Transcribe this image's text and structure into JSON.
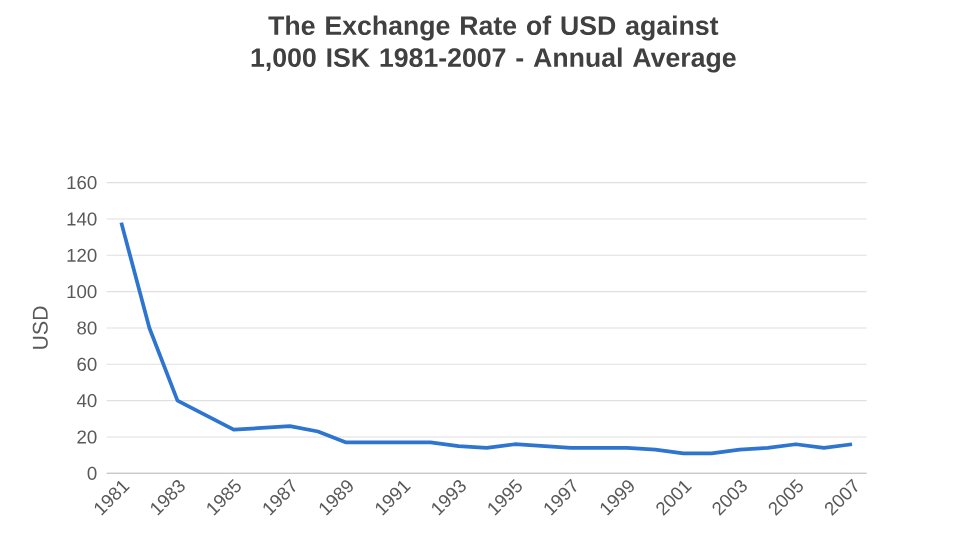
{
  "chart_data": {
    "type": "line",
    "title": "The Exchange Rate of USD against 1,000 ISK 1981-2007 - Annual Average",
    "ylabel": "USD",
    "categories": [
      "1981",
      null,
      "1983",
      null,
      "1985",
      null,
      "1987",
      null,
      "1989",
      null,
      "1991",
      null,
      "1993",
      null,
      "1995",
      null,
      "1997",
      null,
      "1999",
      null,
      "2001",
      null,
      "2003",
      null,
      "2005",
      null,
      "2007"
    ],
    "values": [
      138,
      80,
      40,
      32,
      24,
      25,
      26,
      23,
      17,
      17,
      17,
      17,
      15,
      14,
      16,
      15,
      14,
      14,
      14,
      13,
      11,
      11,
      13,
      14,
      16,
      14,
      16
    ],
    "color": "#2e75d0",
    "ylim": [
      0,
      160
    ],
    "yticks": [
      0,
      20,
      40,
      60,
      80,
      100,
      120,
      140,
      160
    ],
    "grid": "y",
    "marker": "none",
    "line_style": "solid"
  }
}
